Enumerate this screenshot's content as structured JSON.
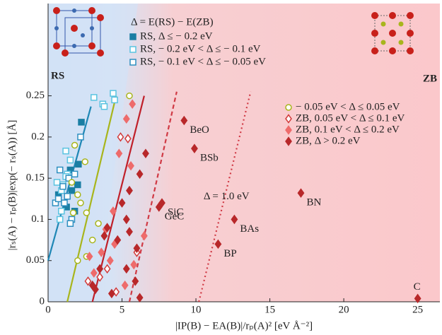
{
  "chart_data": {
    "type": "scatter",
    "title": "Δ = E(RS) − E(ZB)",
    "region_labels": [
      {
        "text": "RS",
        "color": "#2a7fb5"
      },
      {
        "text": "ZB",
        "color": "#c8202a"
      }
    ],
    "x_label": "|IP(B) − EA(B)|/rₚ(A)²    [eV Å⁻²]",
    "y_label": "|rₛ(A) − rₚ(B)|exp(− rₛ(A)) [Å]",
    "xlim": [
      0,
      26.5
    ],
    "ylim": [
      0,
      0.362
    ],
    "xticks": [
      0,
      5,
      10,
      15,
      20,
      25
    ],
    "yticks": [
      0,
      0.05,
      0.1,
      0.15,
      0.2,
      0.25
    ],
    "series": [
      {
        "name": "RS, Δ ≤ − 0.2 eV",
        "color": "#1a7ea3",
        "marker": "square",
        "filled": true,
        "x": [
          0.7,
          1.25,
          1.5,
          1.8,
          2.0,
          2.05,
          2.25,
          1.6
        ],
        "values": [
          0.13,
          0.115,
          0.16,
          0.11,
          0.142,
          0.167,
          0.218,
          0.135
        ]
      },
      {
        "name": "RS, − 0.2 eV < Δ ≤ − 0.1 eV",
        "color": "#59c3e0",
        "marker": "square",
        "filled": false,
        "x": [
          0.6,
          0.9,
          1.0,
          1.3,
          1.2,
          1.5,
          3.7,
          3.1,
          3.8,
          4.4,
          4.5,
          0.9,
          1.2,
          0.8
        ],
        "values": [
          0.145,
          0.135,
          0.142,
          0.155,
          0.183,
          0.172,
          0.24,
          0.248,
          0.237,
          0.253,
          0.245,
          0.11,
          0.152,
          0.1
        ]
      },
      {
        "name": "RS, − 0.1 eV < Δ ≤ − 0.05 eV",
        "color": "#2d8fc0",
        "marker": "square",
        "filled": false,
        "x": [
          0.5,
          0.7,
          1.0,
          1.3,
          1.4,
          1.6,
          0.8,
          1.5,
          1.8,
          2.2,
          1.1
        ],
        "values": [
          0.12,
          0.125,
          0.14,
          0.128,
          0.15,
          0.1,
          0.16,
          0.095,
          0.155,
          0.2,
          0.12
        ]
      },
      {
        "name": "− 0.05 eV < Δ ≤ 0.05 eV",
        "color": "#a8b51c",
        "marker": "circle",
        "filled": false,
        "x": [
          1.8,
          2.5,
          1.6,
          2.0,
          1.7,
          2.6,
          3.4,
          2.6,
          2.0,
          5.5,
          2.2,
          3.0
        ],
        "values": [
          0.19,
          0.17,
          0.145,
          0.13,
          0.108,
          0.108,
          0.095,
          0.055,
          0.05,
          0.25,
          0.12,
          0.075
        ]
      },
      {
        "name": "ZB, 0.05 eV < Δ ≤ 0.1 eV",
        "color": "#d23a3a",
        "marker": "diamond",
        "filled": false,
        "x": [
          4.9,
          5.4,
          3.5,
          4.0,
          4.6,
          2.7,
          6.0
        ],
        "values": [
          0.2,
          0.198,
          0.03,
          0.04,
          0.012,
          0.025,
          0.06
        ]
      },
      {
        "name": "ZB, 0.1 eV < Δ ≤ 0.2 eV",
        "color": "#ee6b6b",
        "marker": "diamond",
        "filled": true,
        "x": [
          5.3,
          4.8,
          5.6,
          5.7,
          4.4,
          3.9,
          3.6,
          4.5,
          5.2,
          3.1,
          2.8,
          4.2,
          5.8,
          6.5
        ],
        "values": [
          0.222,
          0.18,
          0.165,
          0.24,
          0.11,
          0.088,
          0.06,
          0.07,
          0.02,
          0.035,
          0.055,
          0.05,
          0.045,
          0.08
        ]
      },
      {
        "name": "ZB, Δ > 0.2 eV",
        "color": "#b8282a",
        "marker": "diamond",
        "filled": true,
        "x": [
          6.6,
          6.2,
          5.5,
          5.0,
          5.3,
          5.5,
          6.0,
          4.7,
          4.0,
          3.8,
          3.5,
          3.2,
          4.3,
          5.3,
          5.9,
          6.2,
          3.0,
          9.2,
          9.9,
          7.7,
          7.5,
          12.6,
          11.5,
          17.1,
          25
        ],
        "values": [
          0.18,
          0.155,
          0.135,
          0.12,
          0.1,
          0.085,
          0.065,
          0.075,
          0.09,
          0.08,
          0.04,
          0.015,
          0.01,
          0.04,
          0.025,
          0.005,
          0.02,
          0.22,
          0.186,
          0.12,
          0.115,
          0.1,
          0.07,
          0.132,
          0.004
        ],
        "point_labels": [
          null,
          null,
          null,
          null,
          null,
          null,
          null,
          null,
          null,
          null,
          null,
          null,
          null,
          null,
          null,
          null,
          null,
          "BeO",
          "BSb",
          "SiC",
          "GeC",
          "BAs",
          "BP",
          "BN",
          "C"
        ]
      }
    ],
    "lines": [
      {
        "color": "#1f87b5",
        "style": "solid",
        "x": [
          0,
          2.9
        ],
        "values": [
          0.05,
          0.237
        ]
      },
      {
        "color": "#a8b51c",
        "style": "solid",
        "x": [
          1.3,
          4.6
        ],
        "values": [
          0,
          0.25
        ]
      },
      {
        "color": "#c0202a",
        "style": "solid",
        "x": [
          3.0,
          6.5
        ],
        "values": [
          0,
          0.25
        ]
      },
      {
        "color": "#d03a45",
        "style": "dashed",
        "x": [
          5.5,
          8.7
        ],
        "values": [
          0,
          0.255
        ]
      },
      {
        "color": "#d03a45",
        "style": "dotted",
        "x": [
          10.2,
          13.7
        ],
        "values": [
          0,
          0.255
        ],
        "label": "Δ = 1.0 eV"
      }
    ]
  }
}
